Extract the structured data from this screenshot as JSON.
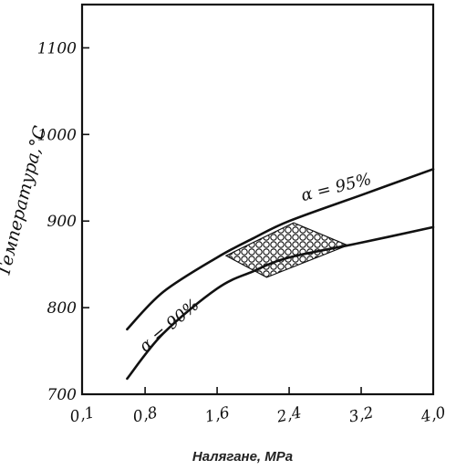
{
  "chart_data": {
    "type": "line",
    "xlabel": "Налягане, MPa",
    "ylabel": "Температура,°С",
    "xlim": [
      0.1,
      4.0
    ],
    "ylim": [
      700,
      1150
    ],
    "x_tick_labels": [
      "0,1",
      "0,8",
      "1,6",
      "2,4",
      "3,2",
      "4,0"
    ],
    "y_tick_labels": [
      "700",
      "800",
      "900",
      "1000",
      "1100"
    ],
    "grid": false,
    "series": [
      {
        "name": "α = 95%",
        "x": [
          0.6,
          1.0,
          1.6,
          2.0,
          2.4,
          3.2,
          4.0
        ],
        "y": [
          775,
          818,
          858,
          880,
          900,
          930,
          960
        ]
      },
      {
        "name": "α = 90%",
        "x": [
          0.6,
          1.0,
          1.6,
          2.0,
          2.4,
          3.2,
          4.0
        ],
        "y": [
          718,
          770,
          822,
          842,
          858,
          875,
          893
        ]
      }
    ],
    "annotations": [
      {
        "type": "crosshatched_region",
        "vertices": [
          [
            1.7,
            860
          ],
          [
            2.45,
            898
          ],
          [
            3.05,
            872
          ],
          [
            2.15,
            835
          ]
        ]
      }
    ]
  }
}
